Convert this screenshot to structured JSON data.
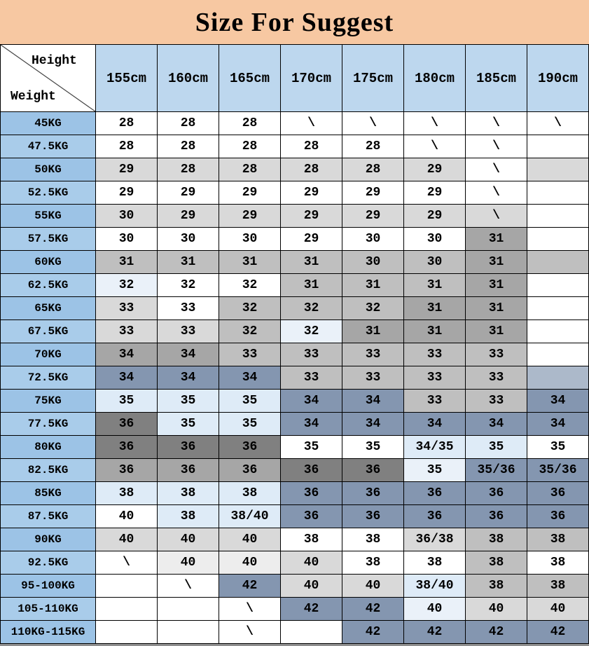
{
  "title": "Size For Suggest",
  "corner": {
    "top_label": "Height",
    "bottom_label": "Weight"
  },
  "theme": {
    "title_bg": "#F7C8A2",
    "header_bg": "#BDD7EE",
    "weight_col_bg_a": "#9CC3E6",
    "weight_col_bg_b": "#A9CCEA",
    "border": "#000000"
  },
  "palette": {
    "w": "#FFFFFF",
    "g1": "#EDEDED",
    "g2": "#D9D9D9",
    "g3": "#BFBFBF",
    "g4": "#A6A6A6",
    "g5": "#808080",
    "sb": "#8496B0",
    "sl": "#ACB9CA",
    "lb": "#DEEBF7",
    "pb": "#EAF1F9"
  },
  "chart_data": {
    "type": "table",
    "title": "Size For Suggest",
    "column_axis_label": "Height",
    "row_axis_label": "Weight",
    "columns": [
      "155cm",
      "160cm",
      "165cm",
      "170cm",
      "175cm",
      "180cm",
      "185cm",
      "190cm"
    ],
    "rows": [
      "45KG",
      "47.5KG",
      "50KG",
      "52.5KG",
      "55KG",
      "57.5KG",
      "60KG",
      "62.5KG",
      "65KG",
      "67.5KG",
      "70KG",
      "72.5KG",
      "75KG",
      "77.5KG",
      "80KG",
      "82.5KG",
      "85KG",
      "87.5KG",
      "90KG",
      "92.5KG",
      "95-100KG",
      "105-110KG",
      "110KG-115KG"
    ],
    "values": [
      [
        "28",
        "28",
        "28",
        "\\",
        "\\",
        "\\",
        "\\",
        "\\"
      ],
      [
        "28",
        "28",
        "28",
        "28",
        "28",
        "\\",
        "\\",
        ""
      ],
      [
        "29",
        "28",
        "28",
        "28",
        "28",
        "29",
        "\\",
        ""
      ],
      [
        "29",
        "29",
        "29",
        "29",
        "29",
        "29",
        "\\",
        ""
      ],
      [
        "30",
        "29",
        "29",
        "29",
        "29",
        "29",
        "\\",
        ""
      ],
      [
        "30",
        "30",
        "30",
        "29",
        "30",
        "30",
        "31",
        ""
      ],
      [
        "31",
        "31",
        "31",
        "31",
        "30",
        "30",
        "31",
        ""
      ],
      [
        "32",
        "32",
        "32",
        "31",
        "31",
        "31",
        "31",
        ""
      ],
      [
        "33",
        "33",
        "32",
        "32",
        "32",
        "31",
        "31",
        ""
      ],
      [
        "33",
        "33",
        "32",
        "32",
        "31",
        "31",
        "31",
        ""
      ],
      [
        "34",
        "34",
        "33",
        "33",
        "33",
        "33",
        "33",
        ""
      ],
      [
        "34",
        "34",
        "34",
        "33",
        "33",
        "33",
        "33",
        ""
      ],
      [
        "35",
        "35",
        "35",
        "34",
        "34",
        "33",
        "33",
        "34"
      ],
      [
        "36",
        "35",
        "35",
        "34",
        "34",
        "34",
        "34",
        "34"
      ],
      [
        "36",
        "36",
        "36",
        "35",
        "35",
        "34/35",
        "35",
        "35"
      ],
      [
        "36",
        "36",
        "36",
        "36",
        "36",
        "35",
        "35/36",
        "35/36"
      ],
      [
        "38",
        "38",
        "38",
        "36",
        "36",
        "36",
        "36",
        "36"
      ],
      [
        "40",
        "38",
        "38/40",
        "36",
        "36",
        "36",
        "36",
        "36"
      ],
      [
        "40",
        "40",
        "40",
        "38",
        "38",
        "36/38",
        "38",
        "38"
      ],
      [
        "\\",
        "40",
        "40",
        "40",
        "38",
        "38",
        "38",
        "38"
      ],
      [
        "",
        "\\",
        "42",
        "40",
        "40",
        "38/40",
        "38",
        "38"
      ],
      [
        "",
        "",
        "\\",
        "42",
        "42",
        "40",
        "40",
        "40"
      ],
      [
        "",
        "",
        "\\",
        "",
        "42",
        "42",
        "42",
        "42"
      ]
    ]
  },
  "cell_colors": [
    [
      "w",
      "w",
      "w",
      "w",
      "w",
      "w",
      "w",
      "w"
    ],
    [
      "w",
      "w",
      "w",
      "w",
      "w",
      "w",
      "w",
      "w"
    ],
    [
      "g2",
      "g2",
      "g2",
      "g2",
      "g2",
      "g2",
      "w",
      "g2"
    ],
    [
      "w",
      "w",
      "w",
      "w",
      "w",
      "w",
      "w",
      "w"
    ],
    [
      "g2",
      "g2",
      "g2",
      "g2",
      "g2",
      "g2",
      "g2",
      "w"
    ],
    [
      "w",
      "w",
      "w",
      "w",
      "w",
      "w",
      "g4",
      "w"
    ],
    [
      "g3",
      "g3",
      "g3",
      "g3",
      "g3",
      "g3",
      "g4",
      "g3"
    ],
    [
      "pb",
      "w",
      "w",
      "g3",
      "g3",
      "g3",
      "g4",
      "w"
    ],
    [
      "g2",
      "w",
      "g3",
      "g3",
      "g3",
      "g4",
      "g4",
      "w"
    ],
    [
      "g2",
      "g2",
      "g3",
      "pb",
      "g4",
      "g4",
      "g4",
      "w"
    ],
    [
      "g4",
      "g4",
      "g3",
      "g3",
      "g3",
      "g3",
      "g3",
      "w"
    ],
    [
      "sb",
      "sb",
      "sb",
      "g3",
      "g3",
      "g3",
      "g3",
      "sl"
    ],
    [
      "lb",
      "lb",
      "lb",
      "sb",
      "sb",
      "g3",
      "g3",
      "sb"
    ],
    [
      "g5",
      "lb",
      "lb",
      "sb",
      "sb",
      "sb",
      "sb",
      "sb"
    ],
    [
      "g5",
      "g5",
      "g5",
      "w",
      "w",
      "lb",
      "lb",
      "w"
    ],
    [
      "g4",
      "g4",
      "g4",
      "g5",
      "g5",
      "pb",
      "sb",
      "sb"
    ],
    [
      "lb",
      "lb",
      "lb",
      "sb",
      "sb",
      "sb",
      "sb",
      "sb"
    ],
    [
      "w",
      "lb",
      "lb",
      "sb",
      "sb",
      "sb",
      "sb",
      "sb"
    ],
    [
      "g2",
      "g2",
      "g2",
      "w",
      "w",
      "g2",
      "g3",
      "g3"
    ],
    [
      "w",
      "g1",
      "g1",
      "g2",
      "w",
      "w",
      "g3",
      "w"
    ],
    [
      "w",
      "w",
      "sb",
      "g2",
      "g2",
      "lb",
      "g3",
      "g3"
    ],
    [
      "w",
      "w",
      "w",
      "sb",
      "sb",
      "pb",
      "g2",
      "g2"
    ],
    [
      "w",
      "w",
      "w",
      "w",
      "sb",
      "sb",
      "sb",
      "sb"
    ]
  ]
}
